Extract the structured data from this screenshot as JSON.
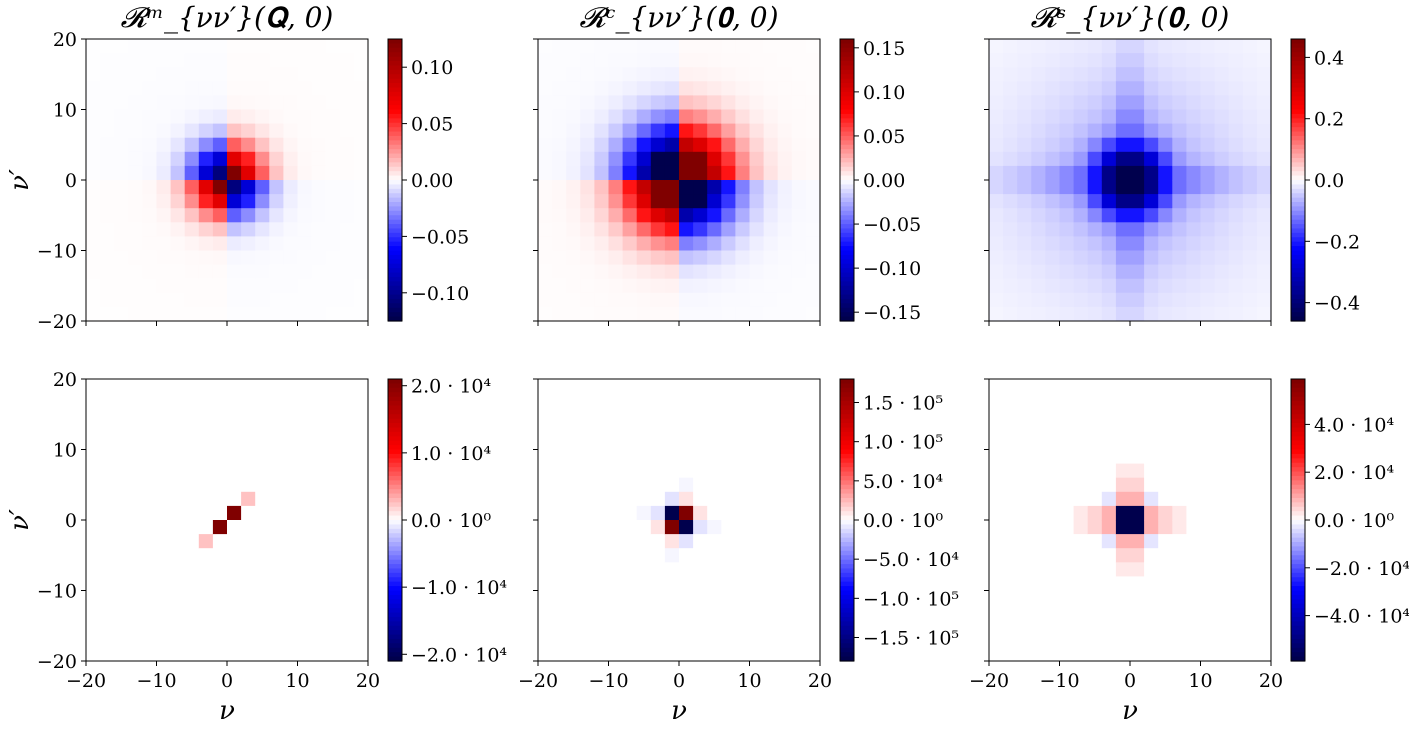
{
  "chart_data": [
    {
      "type": "heatmap",
      "panel": "top-left",
      "title": "𝓡ᵐ_{νν′}(𝐐, 0)",
      "xlabel": "",
      "ylabel": "ν′",
      "xlim": [
        -20,
        20
      ],
      "ylim": [
        -20,
        20
      ],
      "x_ticks": [
        "−20",
        "−10",
        "0",
        "10",
        "20"
      ],
      "y_ticks": [
        "−20",
        "−10",
        "0",
        "10",
        "20"
      ],
      "x_ticks_shown": false,
      "y_ticks_shown": true,
      "colormap": "seismic",
      "vmin": -0.125,
      "vmax": 0.125,
      "colorbar_ticks": [
        -0.1,
        -0.05,
        0.0,
        0.05,
        0.1
      ],
      "colorbar_labels": [
        "−0.10",
        "−0.05",
        "0.00",
        "0.05",
        "0.10"
      ],
      "grid_n": 20,
      "pattern": {
        "kind": "antisymmetric",
        "amplitude": 0.115,
        "sigma": 3.4,
        "tail": 0.08,
        "spots": [
          {
            "x": -2,
            "y": 2,
            "v": -0.125
          },
          {
            "x": 0,
            "y": 0,
            "v": -0.125
          },
          {
            "x": 2,
            "y": -2,
            "v": -0.125
          },
          {
            "x": 1,
            "y": 1,
            "v": 0.125
          },
          {
            "x": -1,
            "y": -1,
            "v": 0.125
          }
        ]
      }
    },
    {
      "type": "heatmap",
      "panel": "top-middle",
      "title": "𝓡ᶜ_{νν′}(𝟎, 0)",
      "xlabel": "",
      "ylabel": "",
      "xlim": [
        -20,
        20
      ],
      "ylim": [
        -20,
        20
      ],
      "x_ticks": [
        "−20",
        "−10",
        "0",
        "10",
        "20"
      ],
      "y_ticks": [
        "−20",
        "−10",
        "0",
        "10",
        "20"
      ],
      "x_ticks_shown": false,
      "y_ticks_shown": false,
      "colormap": "seismic",
      "vmin": -0.16,
      "vmax": 0.16,
      "colorbar_ticks": [
        -0.15,
        -0.1,
        -0.05,
        0.0,
        0.05,
        0.1,
        0.15
      ],
      "colorbar_labels": [
        "−0.15",
        "−0.10",
        "−0.05",
        "0.00",
        "0.05",
        "0.10",
        "0.15"
      ],
      "grid_n": 20,
      "pattern": {
        "kind": "antisymmetric",
        "amplitude": 0.19,
        "sigma": 5.0,
        "tail": 0.12,
        "spots": [
          {
            "x": -3,
            "y": 3,
            "v": -0.16
          },
          {
            "x": 3,
            "y": -3,
            "v": -0.16
          },
          {
            "x": 3,
            "y": 3,
            "v": 0.16
          },
          {
            "x": -3,
            "y": -3,
            "v": 0.16
          }
        ]
      }
    },
    {
      "type": "heatmap",
      "panel": "top-right",
      "title": "𝓡ˢ_{νν′}(𝟎, 0)",
      "xlabel": "",
      "ylabel": "",
      "xlim": [
        -20,
        20
      ],
      "ylim": [
        -20,
        20
      ],
      "x_ticks": [
        "−20",
        "−10",
        "0",
        "10",
        "20"
      ],
      "y_ticks": [
        "−20",
        "−10",
        "0",
        "10",
        "20"
      ],
      "x_ticks_shown": false,
      "y_ticks_shown": false,
      "colormap": "seismic",
      "vmin": -0.46,
      "vmax": 0.46,
      "colorbar_ticks": [
        -0.4,
        -0.2,
        0.0,
        0.2,
        0.4
      ],
      "colorbar_labels": [
        "−0.4",
        "−0.2",
        "0.0",
        "0.2",
        "0.4"
      ],
      "grid_n": 20,
      "pattern": {
        "kind": "cross",
        "amplitude": -0.46,
        "sigma": 3.2,
        "tail": 0.3,
        "spots": []
      }
    },
    {
      "type": "heatmap",
      "panel": "bottom-left",
      "title": "",
      "xlabel": "ν",
      "ylabel": "ν′",
      "xlim": [
        -20,
        20
      ],
      "ylim": [
        -20,
        20
      ],
      "x_ticks": [
        "−20",
        "−10",
        "0",
        "10",
        "20"
      ],
      "y_ticks": [
        "−20",
        "−10",
        "0",
        "10",
        "20"
      ],
      "x_ticks_shown": true,
      "y_ticks_shown": true,
      "colormap": "seismic",
      "vmin": -21000,
      "vmax": 21000,
      "colorbar_ticks": [
        -20000,
        -10000,
        0,
        10000,
        20000
      ],
      "colorbar_labels": [
        "−2.0 · 10⁴",
        "−1.0 · 10⁴",
        "0.0 · 10⁰",
        "1.0 · 10⁴",
        "2.0 · 10⁴"
      ],
      "grid_n": 20,
      "pattern": {
        "kind": "spots",
        "amplitude": 0,
        "sigma": 1,
        "tail": 0,
        "spots": [
          {
            "x": 1,
            "y": 1,
            "v": 21000
          },
          {
            "x": -1,
            "y": -1,
            "v": 21000
          },
          {
            "x": 3,
            "y": 3,
            "v": 2500
          },
          {
            "x": -3,
            "y": -3,
            "v": 2500
          }
        ]
      }
    },
    {
      "type": "heatmap",
      "panel": "bottom-middle",
      "title": "",
      "xlabel": "ν",
      "ylabel": "",
      "xlim": [
        -20,
        20
      ],
      "ylim": [
        -20,
        20
      ],
      "x_ticks": [
        "−20",
        "−10",
        "0",
        "10",
        "20"
      ],
      "y_ticks": [
        "−20",
        "−10",
        "0",
        "10",
        "20"
      ],
      "x_ticks_shown": true,
      "y_ticks_shown": false,
      "colormap": "seismic",
      "vmin": -180000,
      "vmax": 180000,
      "colorbar_ticks": [
        -150000,
        -100000,
        -50000,
        0,
        50000,
        100000,
        150000
      ],
      "colorbar_labels": [
        "−1.5 · 10⁵",
        "−1.0 · 10⁵",
        "−5.0 · 10⁴",
        "0.0 · 10⁰",
        "5.0 · 10⁴",
        "1.0 · 10⁵",
        "1.5 · 10⁵"
      ],
      "grid_n": 20,
      "pattern": {
        "kind": "spots",
        "amplitude": 0,
        "sigma": 1,
        "tail": 0,
        "spots": [
          {
            "x": -1,
            "y": 1,
            "v": -180000
          },
          {
            "x": 1,
            "y": -1,
            "v": -180000
          },
          {
            "x": 1,
            "y": 1,
            "v": 180000
          },
          {
            "x": -1,
            "y": -1,
            "v": 180000
          },
          {
            "x": -3,
            "y": 1,
            "v": -10000
          },
          {
            "x": 3,
            "y": -1,
            "v": -10000
          },
          {
            "x": 1,
            "y": -3,
            "v": -10000
          },
          {
            "x": -1,
            "y": 3,
            "v": -10000
          },
          {
            "x": 3,
            "y": 1,
            "v": 10000
          },
          {
            "x": -3,
            "y": -1,
            "v": 10000
          },
          {
            "x": 1,
            "y": 3,
            "v": 10000
          },
          {
            "x": -1,
            "y": -3,
            "v": 10000
          },
          {
            "x": -5,
            "y": 1,
            "v": -3000
          },
          {
            "x": 5,
            "y": -1,
            "v": -3000
          },
          {
            "x": -1,
            "y": -5,
            "v": -3000
          },
          {
            "x": 1,
            "y": 5,
            "v": -3000
          }
        ]
      }
    },
    {
      "type": "heatmap",
      "panel": "bottom-right",
      "title": "",
      "xlabel": "ν",
      "ylabel": "",
      "xlim": [
        -20,
        20
      ],
      "ylim": [
        -20,
        20
      ],
      "x_ticks": [
        "−20",
        "−10",
        "0",
        "10",
        "20"
      ],
      "y_ticks": [
        "−20",
        "−10",
        "0",
        "10",
        "20"
      ],
      "x_ticks_shown": true,
      "y_ticks_shown": false,
      "colormap": "seismic",
      "vmin": -59000,
      "vmax": 59000,
      "colorbar_ticks": [
        -40000,
        -20000,
        0,
        20000,
        40000
      ],
      "colorbar_labels": [
        "−4.0 · 10⁴",
        "−2.0 · 10⁴",
        "0.0 · 10⁰",
        "2.0 · 10⁴",
        "4.0 · 10⁴"
      ],
      "grid_n": 20,
      "pattern": {
        "kind": "spots",
        "amplitude": 0,
        "sigma": 1,
        "tail": 0,
        "spots": [
          {
            "x": -1,
            "y": 1,
            "v": -59000
          },
          {
            "x": 1,
            "y": 1,
            "v": -59000
          },
          {
            "x": -1,
            "y": -1,
            "v": -59000
          },
          {
            "x": 1,
            "y": -1,
            "v": -59000
          },
          {
            "x": -3,
            "y": 1,
            "v": 9000
          },
          {
            "x": -3,
            "y": -1,
            "v": 9000
          },
          {
            "x": 3,
            "y": 1,
            "v": 9000
          },
          {
            "x": 3,
            "y": -1,
            "v": 9000
          },
          {
            "x": -1,
            "y": 3,
            "v": 9000
          },
          {
            "x": 1,
            "y": 3,
            "v": 9000
          },
          {
            "x": -1,
            "y": -3,
            "v": 9000
          },
          {
            "x": 1,
            "y": -3,
            "v": 9000
          },
          {
            "x": -5,
            "y": 1,
            "v": 5000
          },
          {
            "x": -5,
            "y": -1,
            "v": 5000
          },
          {
            "x": 5,
            "y": 1,
            "v": 5000
          },
          {
            "x": 5,
            "y": -1,
            "v": 5000
          },
          {
            "x": -1,
            "y": 5,
            "v": 5000
          },
          {
            "x": 1,
            "y": 5,
            "v": 5000
          },
          {
            "x": -1,
            "y": -5,
            "v": 5000
          },
          {
            "x": 1,
            "y": -5,
            "v": 5000
          },
          {
            "x": 3,
            "y": 3,
            "v": -3000
          },
          {
            "x": -3,
            "y": 3,
            "v": -3000
          },
          {
            "x": 3,
            "y": -3,
            "v": -3000
          },
          {
            "x": -3,
            "y": -3,
            "v": -3000
          },
          {
            "x": -1,
            "y": 7,
            "v": 2500
          },
          {
            "x": 1,
            "y": 7,
            "v": 2500
          },
          {
            "x": -1,
            "y": -7,
            "v": 2500
          },
          {
            "x": 1,
            "y": -7,
            "v": 2500
          },
          {
            "x": -7,
            "y": 1,
            "v": 2500
          },
          {
            "x": -7,
            "y": -1,
            "v": 2500
          },
          {
            "x": 7,
            "y": 1,
            "v": 2500
          },
          {
            "x": 7,
            "y": -1,
            "v": 2500
          }
        ]
      }
    }
  ]
}
